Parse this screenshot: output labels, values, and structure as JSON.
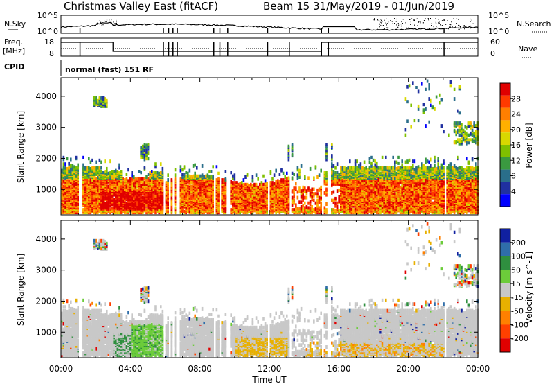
{
  "header": {
    "title_left": "Christmas Valley East (fitACF)",
    "title_right": "Beam 15  31/May/2019 - 01/Jun/2019"
  },
  "top_panels": {
    "nsky_label": "N.Sky",
    "nsearch_label": "N.Search",
    "nsky_ticks": [
      "10^5",
      "10^0"
    ],
    "nsearch_ticks": [
      "10^5",
      "10^0"
    ],
    "freq_label": "Freq.",
    "freq_unit": "[MHz]",
    "freq_ticks": [
      "18",
      "8"
    ],
    "nave_label": "Nave",
    "nave_ticks": [
      "60",
      "0"
    ],
    "cpid_label": "CPID",
    "cpid_value": "normal (fast) 151 RF"
  },
  "chart_data": [
    {
      "type": "heatmap",
      "name": "power",
      "ylabel": "Slant Range [km]",
      "yticks": [
        1000,
        2000,
        3000,
        4000
      ],
      "ylim": [
        180,
        4600
      ],
      "x_ticks": [
        "00:00",
        "04:00",
        "08:00",
        "12:00",
        "16:00",
        "20:00",
        "00:00"
      ],
      "colorbar": {
        "label": "Power [dB]",
        "ticks": [
          "28",
          "24",
          "20",
          "16",
          "12",
          "8",
          "4"
        ],
        "colors": [
          "#e00000",
          "#ff3a00",
          "#ff7f00",
          "#ffb000",
          "#d8d800",
          "#7fc000",
          "#3a9a40",
          "#2a6e8a",
          "#2030a0",
          "#0000ff"
        ]
      }
    },
    {
      "type": "heatmap",
      "name": "velocity",
      "ylabel": "Slant Range [km]",
      "yticks": [
        1000,
        2000,
        3000,
        4000
      ],
      "ylim": [
        180,
        4600
      ],
      "x_ticks": [
        "00:00",
        "04:00",
        "08:00",
        "12:00",
        "16:00",
        "20:00",
        "00:00"
      ],
      "xlabel": "Time UT",
      "colorbar": {
        "label": "Velocity [m s^-1]",
        "ticks": [
          "200",
          "100",
          "50",
          "15",
          "-15",
          "-50",
          "-100",
          "-200"
        ],
        "colors": [
          "#1020a0",
          "#2f6eaa",
          "#2f8f3f",
          "#6ccc3a",
          "#c8c8c8",
          "#e8b000",
          "#ff8000",
          "#ff4000",
          "#e00000"
        ]
      }
    }
  ]
}
